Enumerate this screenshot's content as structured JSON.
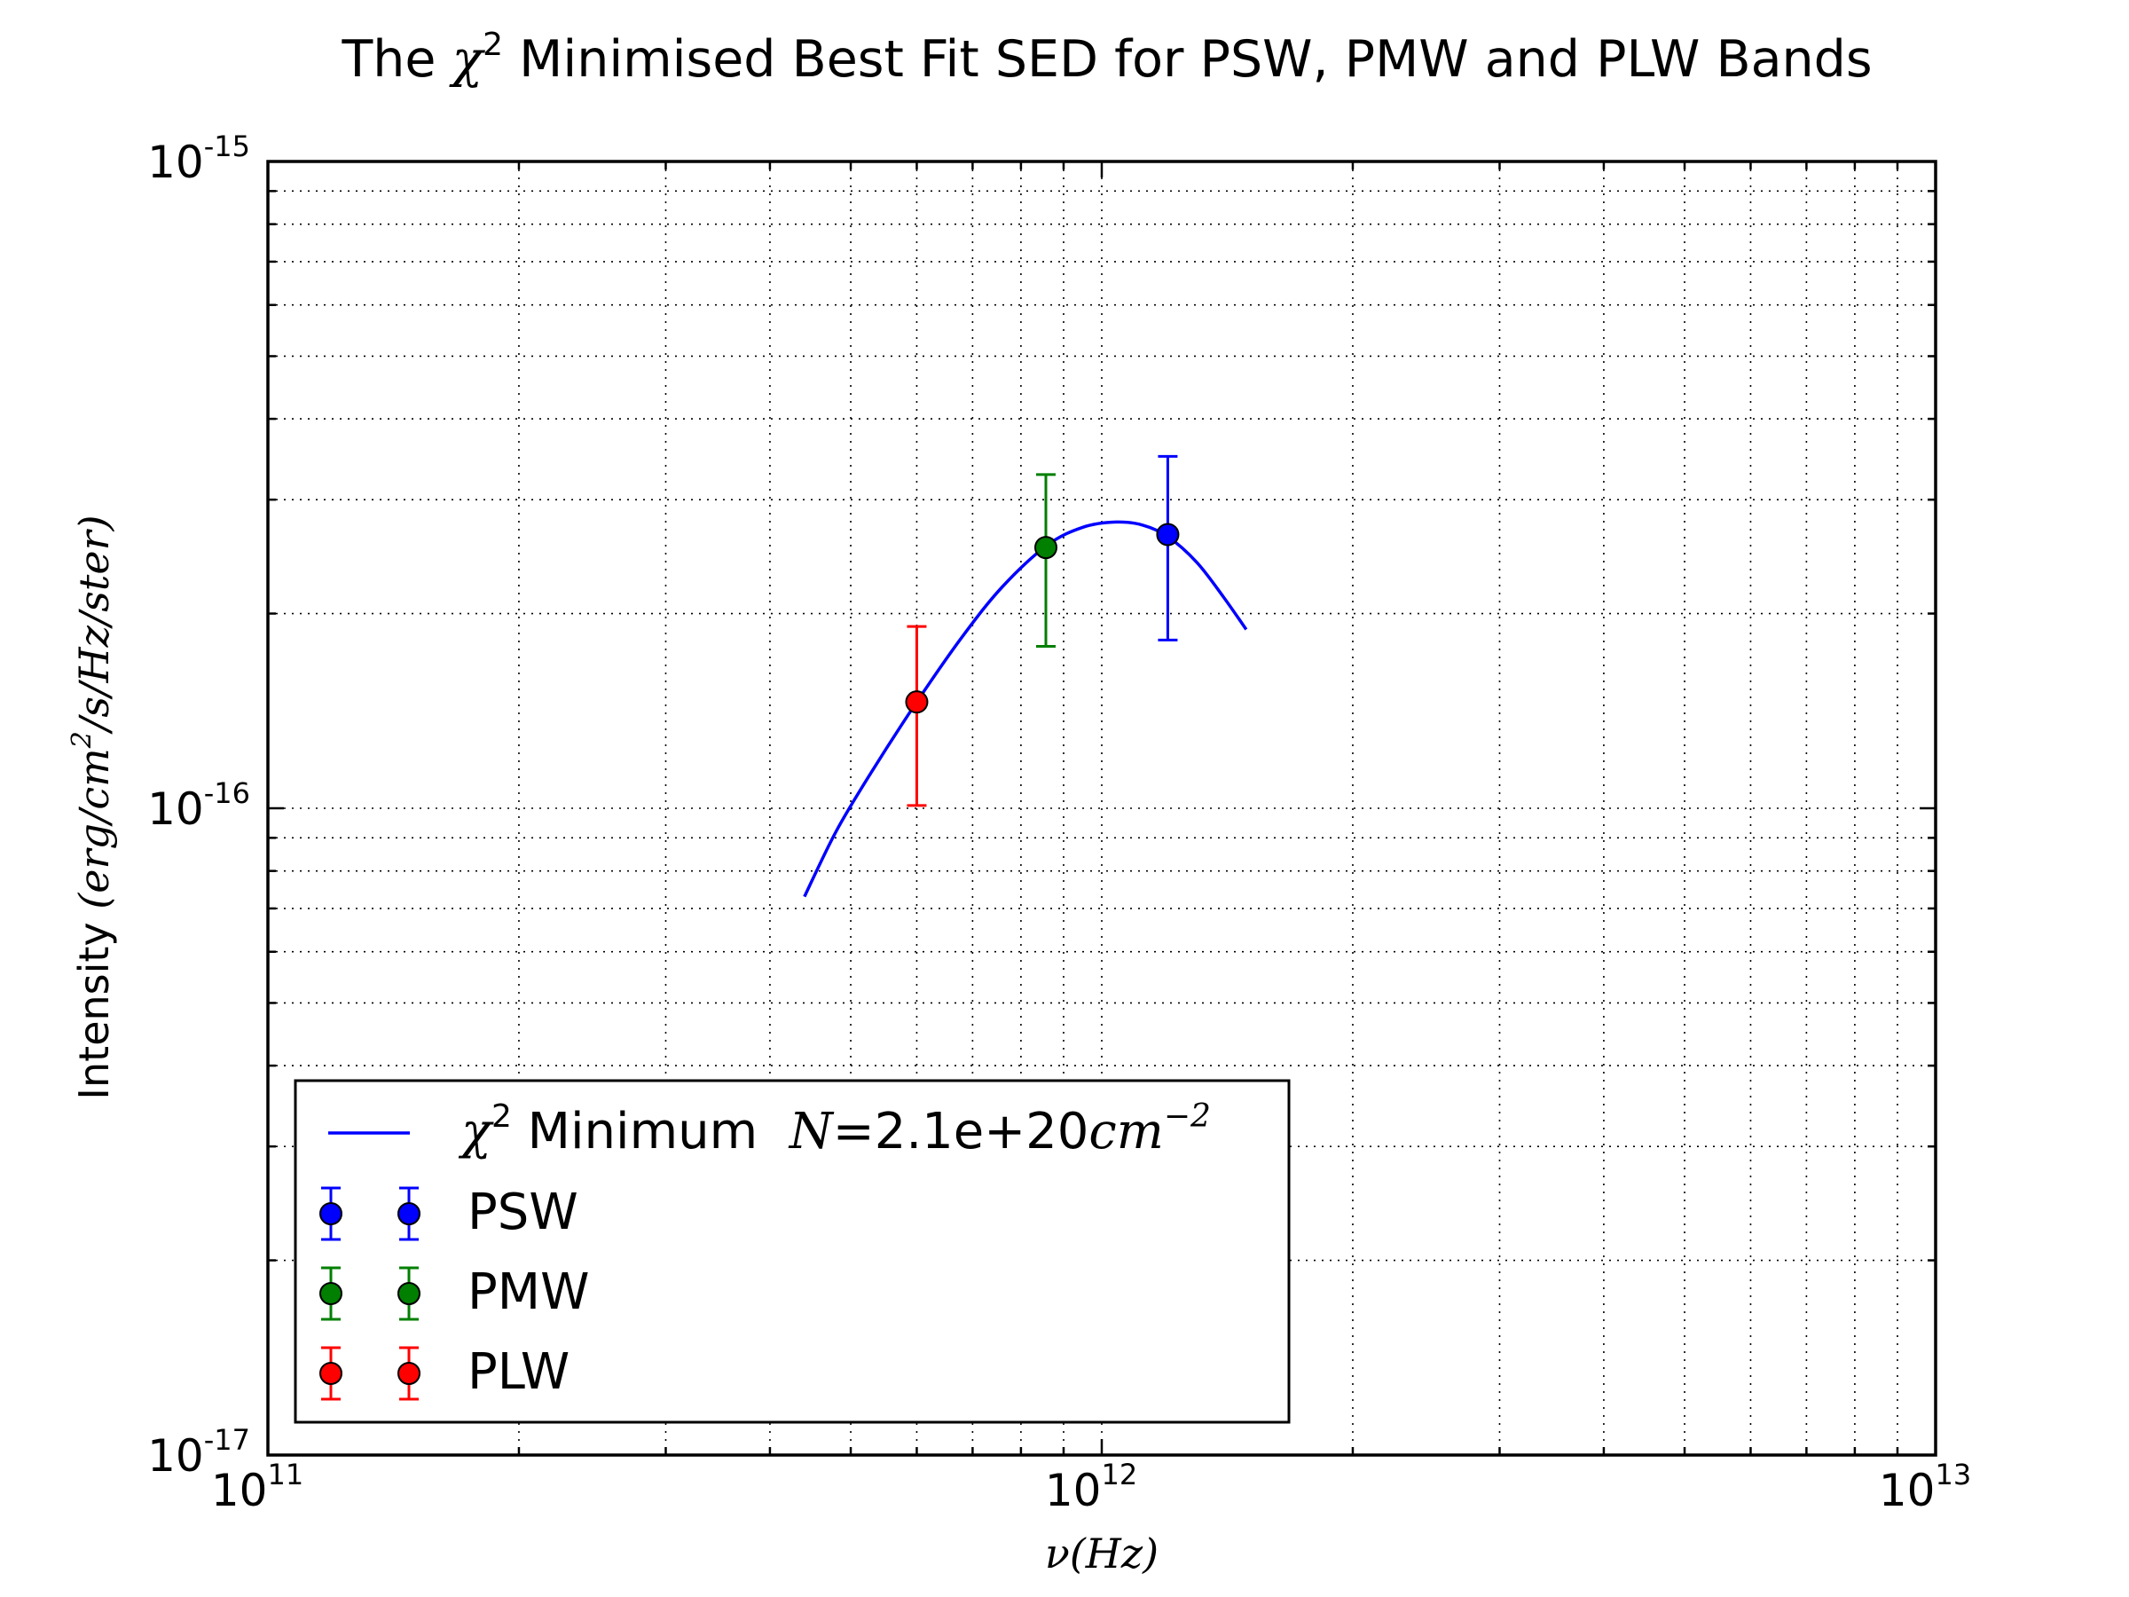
{
  "chart_data": {
    "type": "scatter",
    "title": {
      "prefix": "The ",
      "chi": "χ",
      "sup": "2",
      "rest": " Minimised Best Fit SED for PSW, PMW and PLW Bands"
    },
    "xlabel": {
      "nu": "ν",
      "unit": "(Hz)"
    },
    "ylabel": {
      "prefix": "Intensity ",
      "unit_a": "(erg/cm",
      "sup": "2",
      "unit_b": "/s/Hz/ster)"
    },
    "x_scale": "log",
    "y_scale": "log",
    "xlim": [
      100000000000.0,
      10000000000000.0
    ],
    "ylim": [
      1e-17,
      1e-15
    ],
    "x_ticks": [
      {
        "value": 100000000000.0,
        "base": "10",
        "exp": "11"
      },
      {
        "value": 1000000000000.0,
        "base": "10",
        "exp": "12"
      },
      {
        "value": 10000000000000.0,
        "base": "10",
        "exp": "13"
      }
    ],
    "y_ticks": [
      {
        "value": 1e-17,
        "base": "10",
        "exp": "-17"
      },
      {
        "value": 1e-16,
        "base": "10",
        "exp": "-16"
      },
      {
        "value": 1e-15,
        "base": "10",
        "exp": "-15"
      }
    ],
    "grid": true,
    "legend_position": "lower-left",
    "fit_curve": {
      "label": {
        "chi": "χ",
        "sup": "2",
        "text": " Minimum  ",
        "n": "N",
        "eq": "=2.1e+20",
        "cm": "cm",
        "cm_sup": "−2"
      },
      "color": "#0000ff",
      "x": [
        440000000000.0,
        480000000000.0,
        530000000000.0,
        600000000000.0,
        680000000000.0,
        760000000000.0,
        860000000000.0,
        950000000000.0,
        1040000000000.0,
        1120000000000.0,
        1200000000000.0,
        1300000000000.0,
        1400000000000.0,
        1490000000000.0
      ],
      "y": [
        7.3e-17,
        9.2e-17,
        1.14e-16,
        1.46e-16,
        1.84e-16,
        2.2e-16,
        2.55e-16,
        2.72e-16,
        2.77e-16,
        2.74e-16,
        2.63e-16,
        2.4e-16,
        2.12e-16,
        1.89e-16
      ]
    },
    "series": [
      {
        "name": "PSW",
        "color": "#0000ff",
        "x": 1200000000000.0,
        "y": 2.65e-16,
        "y_err_low": 1.82e-16,
        "y_err_high": 3.5e-16
      },
      {
        "name": "PMW",
        "color": "#007f00",
        "x": 857000000000.0,
        "y": 2.53e-16,
        "y_err_low": 1.78e-16,
        "y_err_high": 3.28e-16
      },
      {
        "name": "PLW",
        "color": "#ff0000",
        "x": 600000000000.0,
        "y": 1.46e-16,
        "y_err_low": 1.01e-16,
        "y_err_high": 1.91e-16
      }
    ]
  }
}
